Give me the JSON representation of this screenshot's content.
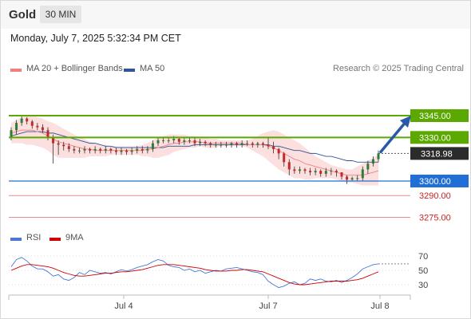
{
  "header": {
    "symbol": "Gold",
    "timeframe": "30 MIN",
    "datetime": "Monday, July 7, 2025 5:32:34 PM CET"
  },
  "legend": {
    "ma20_label": "MA 20 + Bollinger Bands",
    "ma50_label": "MA 50",
    "credit": "Research © 2025 Trading Central",
    "rsi_label": "RSI",
    "ma9_label": "9MA"
  },
  "colors": {
    "ma20": "#f08080",
    "ma50": "#2f5597",
    "bollinger_fill": "#fcd9d9",
    "resistance": "#5aa800",
    "support": "#1f6fd6",
    "target_red": "#e98c8c",
    "candle_up": "#2e7d32",
    "candle_down": "#c62828",
    "rsi": "#4a78d4",
    "rsi_ma9": "#cc0000",
    "arrow": "#2a5aa6"
  },
  "chart_data": [
    {
      "type": "candlestick",
      "title": "Gold 30 MIN",
      "x_ticks": [
        "Jul 4",
        "Jul 7",
        "Jul 8"
      ],
      "ylim": [
        3268,
        3350
      ],
      "current_price": 3318.98,
      "close": [
        3335,
        3340,
        3343,
        3341,
        3338,
        3337,
        3335,
        3330,
        3326,
        3325,
        3324,
        3322,
        3321,
        3321,
        3322,
        3321,
        3322,
        3321,
        3322,
        3321,
        3320,
        3321,
        3320,
        3321,
        3322,
        3321,
        3322,
        3326,
        3328,
        3328,
        3328,
        3329,
        3327,
        3328,
        3328,
        3326,
        3327,
        3326,
        3325,
        3325,
        3325,
        3325,
        3326,
        3325,
        3326,
        3326,
        3325,
        3326,
        3325,
        3324,
        3322,
        3319,
        3313,
        3308,
        3307,
        3308,
        3307,
        3306,
        3307,
        3305,
        3307,
        3307,
        3306,
        3303,
        3301,
        3302,
        3302,
        3308,
        3312,
        3315,
        3319
      ],
      "open": [
        3330,
        3335,
        3340,
        3343,
        3341,
        3338,
        3337,
        3335,
        3330,
        3326,
        3325,
        3324,
        3322,
        3321,
        3321,
        3322,
        3321,
        3322,
        3321,
        3322,
        3321,
        3320,
        3321,
        3320,
        3321,
        3322,
        3321,
        3322,
        3326,
        3328,
        3328,
        3328,
        3329,
        3327,
        3328,
        3328,
        3326,
        3327,
        3326,
        3325,
        3325,
        3325,
        3325,
        3326,
        3325,
        3326,
        3326,
        3325,
        3326,
        3325,
        3324,
        3322,
        3319,
        3313,
        3308,
        3307,
        3308,
        3307,
        3306,
        3307,
        3305,
        3307,
        3307,
        3306,
        3303,
        3301,
        3302,
        3302,
        3308,
        3312,
        3315
      ],
      "high": [
        3337,
        3342,
        3345,
        3344,
        3342,
        3340,
        3339,
        3337,
        3332,
        3328,
        3327,
        3326,
        3324,
        3323,
        3324,
        3323,
        3324,
        3323,
        3324,
        3323,
        3323,
        3323,
        3322,
        3323,
        3324,
        3324,
        3324,
        3328,
        3330,
        3330,
        3330,
        3331,
        3330,
        3330,
        3330,
        3330,
        3329,
        3328,
        3327,
        3327,
        3327,
        3327,
        3327,
        3327,
        3328,
        3328,
        3327,
        3327,
        3327,
        3330,
        3327,
        3323,
        3320,
        3315,
        3310,
        3310,
        3309,
        3309,
        3309,
        3308,
        3309,
        3309,
        3308,
        3306,
        3304,
        3303,
        3304,
        3310,
        3314,
        3317,
        3321
      ],
      "low": [
        3328,
        3332,
        3338,
        3339,
        3336,
        3335,
        3333,
        3328,
        3312,
        3318,
        3321,
        3320,
        3319,
        3319,
        3319,
        3319,
        3319,
        3319,
        3319,
        3319,
        3318,
        3318,
        3318,
        3318,
        3319,
        3319,
        3319,
        3320,
        3324,
        3326,
        3326,
        3326,
        3325,
        3325,
        3326,
        3324,
        3324,
        3324,
        3323,
        3323,
        3323,
        3323,
        3323,
        3323,
        3323,
        3324,
        3323,
        3323,
        3323,
        3322,
        3319,
        3315,
        3310,
        3304,
        3305,
        3305,
        3305,
        3304,
        3304,
        3303,
        3303,
        3304,
        3303,
        3301,
        3298,
        3300,
        3300,
        3300,
        3305,
        3310,
        3313
      ],
      "ma20": [
        3333,
        3334,
        3335,
        3335,
        3335,
        3334,
        3333,
        3331,
        3329,
        3327,
        3326,
        3325,
        3324,
        3323,
        3322,
        3322,
        3321,
        3321,
        3321,
        3321,
        3321,
        3321,
        3321,
        3321,
        3321,
        3321,
        3322,
        3322,
        3323,
        3324,
        3325,
        3326,
        3326,
        3327,
        3327,
        3327,
        3327,
        3326,
        3326,
        3326,
        3326,
        3326,
        3326,
        3326,
        3326,
        3325,
        3325,
        3325,
        3325,
        3324,
        3323,
        3321,
        3319,
        3317,
        3315,
        3314,
        3312,
        3311,
        3310,
        3309,
        3308,
        3307,
        3306,
        3305,
        3304,
        3304,
        3304,
        3304,
        3305,
        3306,
        3307
      ],
      "ma50": [
        3331,
        3332,
        3333,
        3334,
        3334,
        3334,
        3334,
        3333,
        3333,
        3332,
        3331,
        3330,
        3329,
        3328,
        3327,
        3326,
        3326,
        3325,
        3324,
        3324,
        3323,
        3323,
        3323,
        3323,
        3323,
        3323,
        3323,
        3323,
        3323,
        3323,
        3324,
        3324,
        3324,
        3324,
        3324,
        3325,
        3325,
        3325,
        3325,
        3325,
        3325,
        3325,
        3325,
        3325,
        3325,
        3325,
        3325,
        3325,
        3325,
        3325,
        3324,
        3324,
        3323,
        3322,
        3321,
        3321,
        3320,
        3319,
        3319,
        3318,
        3317,
        3317,
        3316,
        3315,
        3314,
        3314,
        3313,
        3313,
        3313,
        3313,
        3313
      ],
      "bb_upper": [
        3340,
        3342,
        3344,
        3345,
        3345,
        3344,
        3343,
        3341,
        3340,
        3338,
        3336,
        3334,
        3332,
        3330,
        3329,
        3327,
        3326,
        3325,
        3325,
        3324,
        3324,
        3324,
        3324,
        3324,
        3324,
        3325,
        3326,
        3328,
        3330,
        3331,
        3332,
        3332,
        3332,
        3332,
        3331,
        3331,
        3330,
        3330,
        3329,
        3329,
        3328,
        3328,
        3328,
        3328,
        3328,
        3328,
        3329,
        3331,
        3333,
        3334,
        3335,
        3334,
        3332,
        3330,
        3328,
        3326,
        3323,
        3320,
        3317,
        3315,
        3313,
        3311,
        3310,
        3309,
        3308,
        3308,
        3310,
        3312,
        3314,
        3316,
        3318
      ],
      "bb_lower": [
        3326,
        3326,
        3326,
        3325,
        3325,
        3324,
        3323,
        3321,
        3318,
        3316,
        3316,
        3316,
        3316,
        3316,
        3316,
        3317,
        3317,
        3317,
        3317,
        3318,
        3318,
        3318,
        3318,
        3318,
        3318,
        3317,
        3317,
        3316,
        3316,
        3317,
        3318,
        3320,
        3321,
        3322,
        3323,
        3323,
        3324,
        3323,
        3323,
        3323,
        3324,
        3324,
        3324,
        3324,
        3324,
        3323,
        3321,
        3319,
        3317,
        3314,
        3311,
        3308,
        3306,
        3304,
        3302,
        3302,
        3301,
        3301,
        3302,
        3302,
        3302,
        3302,
        3301,
        3300,
        3299,
        3299,
        3298,
        3297,
        3297,
        3297,
        3297
      ],
      "levels": [
        {
          "label": "3345.00",
          "value": 3345,
          "kind": "resistance"
        },
        {
          "label": "3330.00",
          "value": 3330,
          "kind": "resistance"
        },
        {
          "label": "3318.98",
          "value": 3318.98,
          "kind": "current"
        },
        {
          "label": "3300.00",
          "value": 3300,
          "kind": "support"
        },
        {
          "label": "3290.00",
          "value": 3290,
          "kind": "target"
        },
        {
          "label": "3275.00",
          "value": 3275,
          "kind": "target"
        }
      ],
      "arrow_target": 3345
    },
    {
      "type": "line",
      "title": "RSI",
      "ylim": [
        20,
        80
      ],
      "y_ticks": [
        "70",
        "50",
        "30"
      ],
      "series": [
        {
          "name": "RSI",
          "values": [
            55,
            65,
            68,
            63,
            56,
            52,
            52,
            48,
            42,
            44,
            38,
            36,
            40,
            47,
            44,
            50,
            48,
            46,
            47,
            45,
            48,
            51,
            49,
            51,
            54,
            56,
            58,
            62,
            65,
            63,
            57,
            55,
            54,
            50,
            52,
            48,
            50,
            46,
            48,
            50,
            49,
            52,
            53,
            54,
            52,
            50,
            48,
            47,
            44,
            35,
            30,
            26,
            28,
            32,
            34,
            30,
            32,
            38,
            36,
            38,
            35,
            34,
            36,
            33,
            36,
            40,
            45,
            52,
            55,
            58,
            59
          ]
        },
        {
          "name": "9MA",
          "values": [
            50,
            53,
            56,
            58,
            58,
            57,
            56,
            55,
            53,
            50,
            47,
            45,
            43,
            42,
            42,
            43,
            44,
            45,
            46,
            46,
            47,
            48,
            48,
            49,
            50,
            51,
            53,
            55,
            57,
            58,
            58,
            58,
            57,
            56,
            55,
            54,
            53,
            51,
            50,
            49,
            49,
            49,
            50,
            50,
            51,
            51,
            50,
            49,
            48,
            45,
            42,
            39,
            36,
            33,
            31,
            30,
            30,
            31,
            32,
            33,
            34,
            35,
            35,
            35,
            35,
            36,
            37,
            39,
            42,
            45,
            48
          ]
        }
      ]
    }
  ]
}
